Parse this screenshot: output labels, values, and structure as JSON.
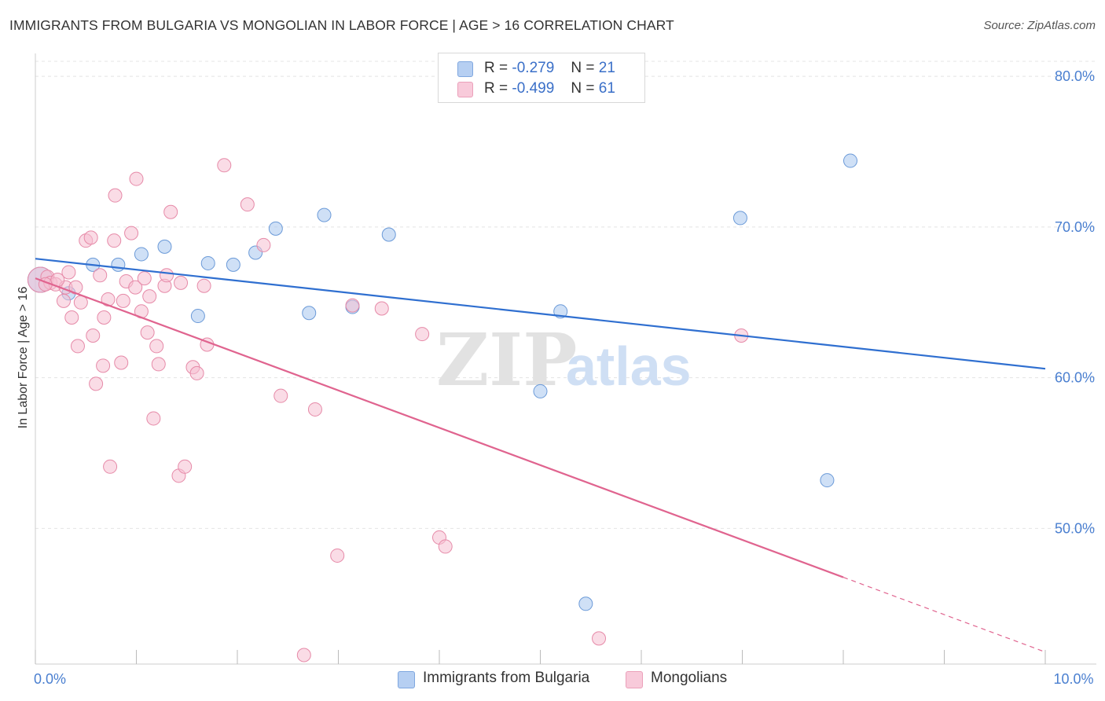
{
  "title": "IMMIGRANTS FROM BULGARIA VS MONGOLIAN IN LABOR FORCE | AGE > 16 CORRELATION CHART",
  "source": "Source: ZipAtlas.com",
  "watermark": {
    "zip": "ZIP",
    "atlas": "atlas"
  },
  "legend": {
    "rows": [
      {
        "r_label": "R =",
        "r_value": "-0.279",
        "n_label": "N =",
        "n_value": "21"
      },
      {
        "r_label": "R =",
        "r_value": "-0.499",
        "n_label": "N =",
        "n_value": "61"
      }
    ]
  },
  "chart_data": {
    "type": "scatter",
    "ylabel": "In Labor Force | Age > 16",
    "xlim": [
      0,
      10
    ],
    "ylim": [
      41,
      81
    ],
    "x_tick_labels": [
      {
        "value": 0,
        "label": "0.0%"
      },
      {
        "value": 10,
        "label": "10.0%"
      }
    ],
    "x_minor_ticks": [
      0,
      1,
      2,
      3,
      4,
      5,
      6,
      7,
      8,
      9,
      10
    ],
    "y_ticks": [
      {
        "value": 50,
        "label": "50.0%"
      },
      {
        "value": 60,
        "label": "60.0%"
      },
      {
        "value": 70,
        "label": "70.0%"
      },
      {
        "value": 80,
        "label": "80.0%"
      }
    ],
    "grid": true,
    "legend_position": "top-center",
    "series": [
      {
        "name": "Immigrants from Bulgaria",
        "color": "#a8c6ef",
        "stroke": "#6b9ad8",
        "line_color": "#2f6fd0",
        "trend": {
          "x0": 0,
          "y0": 67.9,
          "x1": 10,
          "y1": 60.6,
          "dashed_from": null
        },
        "points": [
          {
            "x": 0.05,
            "y": 66.5,
            "size": "large"
          },
          {
            "x": 0.33,
            "y": 65.6
          },
          {
            "x": 0.57,
            "y": 67.5
          },
          {
            "x": 0.82,
            "y": 67.5
          },
          {
            "x": 1.05,
            "y": 68.2
          },
          {
            "x": 1.28,
            "y": 68.7
          },
          {
            "x": 1.61,
            "y": 64.1
          },
          {
            "x": 1.71,
            "y": 67.6
          },
          {
            "x": 1.96,
            "y": 67.5
          },
          {
            "x": 2.18,
            "y": 68.3
          },
          {
            "x": 2.38,
            "y": 69.9
          },
          {
            "x": 2.71,
            "y": 64.3
          },
          {
            "x": 2.86,
            "y": 70.8
          },
          {
            "x": 3.14,
            "y": 64.7
          },
          {
            "x": 3.5,
            "y": 69.5
          },
          {
            "x": 5.0,
            "y": 59.1
          },
          {
            "x": 5.2,
            "y": 64.4
          },
          {
            "x": 5.45,
            "y": 45.0
          },
          {
            "x": 6.98,
            "y": 70.6
          },
          {
            "x": 7.84,
            "y": 53.2
          },
          {
            "x": 8.07,
            "y": 74.4
          }
        ]
      },
      {
        "name": "Mongolians",
        "color": "#f6c0d1",
        "stroke": "#e68aa8",
        "line_color": "#e0648f",
        "trend": {
          "x0": 0,
          "y0": 66.6,
          "x1": 10,
          "y1": 41.8,
          "dashed_from": 8.0
        },
        "points": [
          {
            "x": 0.05,
            "y": 66.5,
            "size": "large"
          },
          {
            "x": 0.12,
            "y": 66.7
          },
          {
            "x": 0.15,
            "y": 66.3
          },
          {
            "x": 0.2,
            "y": 66.2
          },
          {
            "x": 0.28,
            "y": 65.1
          },
          {
            "x": 0.3,
            "y": 66.0
          },
          {
            "x": 0.33,
            "y": 67.0
          },
          {
            "x": 0.36,
            "y": 64.0
          },
          {
            "x": 0.4,
            "y": 66.0
          },
          {
            "x": 0.42,
            "y": 62.1
          },
          {
            "x": 0.45,
            "y": 65.0
          },
          {
            "x": 0.5,
            "y": 69.1
          },
          {
            "x": 0.55,
            "y": 69.3
          },
          {
            "x": 0.57,
            "y": 62.8
          },
          {
            "x": 0.6,
            "y": 59.6
          },
          {
            "x": 0.64,
            "y": 66.8
          },
          {
            "x": 0.67,
            "y": 60.8
          },
          {
            "x": 0.68,
            "y": 64.0
          },
          {
            "x": 0.72,
            "y": 65.2
          },
          {
            "x": 0.74,
            "y": 54.1
          },
          {
            "x": 0.78,
            "y": 69.1
          },
          {
            "x": 0.79,
            "y": 72.1
          },
          {
            "x": 0.85,
            "y": 61.0
          },
          {
            "x": 0.87,
            "y": 65.1
          },
          {
            "x": 0.9,
            "y": 66.4
          },
          {
            "x": 0.95,
            "y": 69.6
          },
          {
            "x": 0.99,
            "y": 66.0
          },
          {
            "x": 1.0,
            "y": 73.2
          },
          {
            "x": 1.05,
            "y": 64.4
          },
          {
            "x": 1.08,
            "y": 66.6
          },
          {
            "x": 1.11,
            "y": 63.0
          },
          {
            "x": 1.13,
            "y": 65.4
          },
          {
            "x": 1.17,
            "y": 57.3
          },
          {
            "x": 1.2,
            "y": 62.1
          },
          {
            "x": 1.22,
            "y": 60.9
          },
          {
            "x": 1.28,
            "y": 66.1
          },
          {
            "x": 1.3,
            "y": 66.8
          },
          {
            "x": 1.34,
            "y": 71.0
          },
          {
            "x": 1.42,
            "y": 53.5
          },
          {
            "x": 1.44,
            "y": 66.3
          },
          {
            "x": 1.48,
            "y": 54.1
          },
          {
            "x": 1.56,
            "y": 60.7
          },
          {
            "x": 1.6,
            "y": 60.3
          },
          {
            "x": 1.67,
            "y": 66.1
          },
          {
            "x": 1.7,
            "y": 62.2
          },
          {
            "x": 1.87,
            "y": 74.1
          },
          {
            "x": 2.1,
            "y": 71.5
          },
          {
            "x": 2.26,
            "y": 68.8
          },
          {
            "x": 2.43,
            "y": 58.8
          },
          {
            "x": 2.66,
            "y": 41.6
          },
          {
            "x": 2.77,
            "y": 57.9
          },
          {
            "x": 2.99,
            "y": 48.2
          },
          {
            "x": 3.14,
            "y": 64.8
          },
          {
            "x": 3.43,
            "y": 64.6
          },
          {
            "x": 3.83,
            "y": 62.9
          },
          {
            "x": 4.0,
            "y": 49.4
          },
          {
            "x": 4.06,
            "y": 48.8
          },
          {
            "x": 5.58,
            "y": 42.7
          },
          {
            "x": 6.99,
            "y": 62.8
          },
          {
            "x": 0.1,
            "y": 66.2
          },
          {
            "x": 0.22,
            "y": 66.5
          }
        ]
      }
    ]
  }
}
